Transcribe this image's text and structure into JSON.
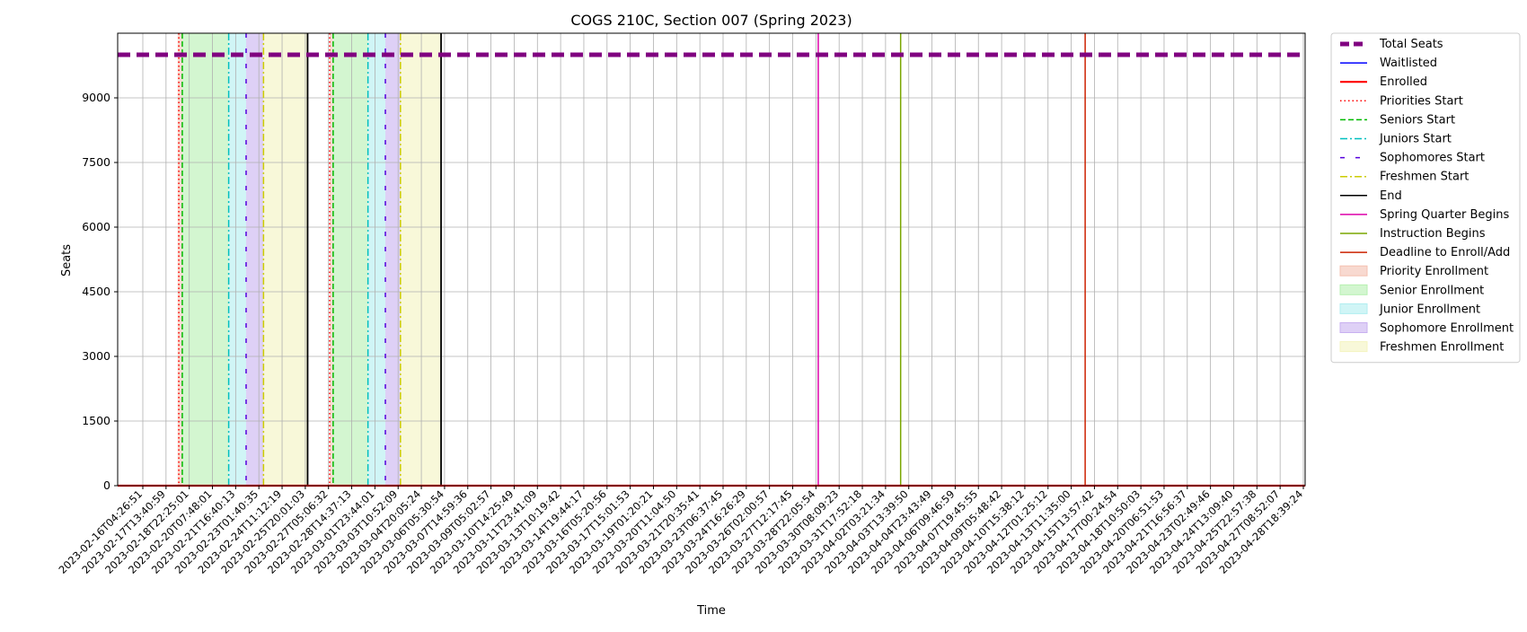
{
  "chart_data": {
    "type": "line",
    "title": "COGS 210C, Section 007 (Spring 2023)",
    "xlabel": "Time",
    "ylabel": "Seats",
    "ylim": [
      0,
      10500
    ],
    "yticks": [
      0,
      1500,
      3000,
      4500,
      6000,
      7500,
      9000
    ],
    "grid": true,
    "legend_position": "outside-right",
    "x_ticks": [
      "2023-02-16T04:26:51",
      "2023-02-17T13:40:59",
      "2023-02-18T22:25:01",
      "2023-02-20T07:48:01",
      "2023-02-21T16:40:13",
      "2023-02-23T01:40:35",
      "2023-02-24T11:12:19",
      "2023-02-25T20:01:03",
      "2023-02-27T05:06:32",
      "2023-02-28T14:37:13",
      "2023-03-01T23:44:01",
      "2023-03-03T10:52:09",
      "2023-03-04T20:05:24",
      "2023-03-06T05:30:54",
      "2023-03-07T14:59:36",
      "2023-03-09T05:02:57",
      "2023-03-10T14:25:49",
      "2023-03-11T23:41:09",
      "2023-03-13T10:19:42",
      "2023-03-14T19:44:17",
      "2023-03-16T05:20:56",
      "2023-03-17T15:01:53",
      "2023-03-19T01:20:21",
      "2023-03-20T11:04:50",
      "2023-03-21T20:35:41",
      "2023-03-23T06:37:45",
      "2023-03-24T16:26:29",
      "2023-03-26T02:00:57",
      "2023-03-27T12:17:45",
      "2023-03-28T22:05:54",
      "2023-03-30T08:09:23",
      "2023-03-31T17:52:18",
      "2023-04-02T03:21:34",
      "2023-04-03T13:39:50",
      "2023-04-04T23:43:49",
      "2023-04-06T09:46:59",
      "2023-04-07T19:45:55",
      "2023-04-09T05:48:42",
      "2023-04-10T15:38:12",
      "2023-04-12T01:25:12",
      "2023-04-13T11:35:00",
      "2023-04-15T13:57:42",
      "2023-04-17T00:24:54",
      "2023-04-18T10:50:03",
      "2023-04-20T06:51:53",
      "2023-04-21T16:56:37",
      "2023-04-23T02:49:46",
      "2023-04-24T13:09:40",
      "2023-04-25T22:57:38",
      "2023-04-27T08:52:07",
      "2023-04-28T18:39:24"
    ],
    "series": [
      {
        "name": "Total Seats",
        "color": "#800080",
        "style": "dashed-thick",
        "value": 9999
      },
      {
        "name": "Waitlisted",
        "color": "#0000ff",
        "style": "solid",
        "value": 0
      },
      {
        "name": "Enrolled",
        "color": "#ff0000",
        "style": "solid-thick",
        "value": 0
      }
    ],
    "shaded_periods": [
      {
        "name": "Priority Enrollment",
        "color": "#f4c0b0",
        "start_tick": 1.5,
        "end_tick": 1.7
      },
      {
        "name": "Senior Enrollment",
        "color": "#b6f0b0",
        "start_tick": 1.7,
        "end_tick": 3.7
      },
      {
        "name": "Junior Enrollment",
        "color": "#b0eef0",
        "start_tick": 3.7,
        "end_tick": 4.45
      },
      {
        "name": "Sophomore Enrollment",
        "color": "#c8b0f0",
        "start_tick": 4.45,
        "end_tick": 5.2
      },
      {
        "name": "Freshmen Enrollment",
        "color": "#f4f4c0",
        "start_tick": 5.2,
        "end_tick": 7.1
      },
      {
        "name": "Priority Enrollment",
        "color": "#f4c0b0",
        "start_tick": 8.05,
        "end_tick": 8.2
      },
      {
        "name": "Senior Enrollment",
        "color": "#b6f0b0",
        "start_tick": 8.2,
        "end_tick": 9.7
      },
      {
        "name": "Junior Enrollment",
        "color": "#b0eef0",
        "start_tick": 9.7,
        "end_tick": 10.45
      },
      {
        "name": "Sophomore Enrollment",
        "color": "#c8b0f0",
        "start_tick": 10.45,
        "end_tick": 11.1
      },
      {
        "name": "Freshmen Enrollment",
        "color": "#f4f4c0",
        "start_tick": 11.1,
        "end_tick": 12.85
      }
    ],
    "event_lines": [
      {
        "name": "Priorities Start",
        "color": "#ff0000",
        "style": "dotted",
        "tick": 1.55
      },
      {
        "name": "Seniors Start",
        "color": "#00bb00",
        "style": "dashed",
        "tick": 1.7
      },
      {
        "name": "Juniors Start",
        "color": "#00bfbf",
        "style": "dashdot",
        "tick": 3.7
      },
      {
        "name": "Sophomores Start",
        "color": "#5500dd",
        "style": "loosedash",
        "tick": 4.45
      },
      {
        "name": "Freshmen Start",
        "color": "#cccc00",
        "style": "dashdot",
        "tick": 5.2
      },
      {
        "name": "End",
        "color": "#000000",
        "style": "solid",
        "tick": 7.1
      },
      {
        "name": "Priorities Start",
        "color": "#ff0000",
        "style": "dotted",
        "tick": 8.05
      },
      {
        "name": "Seniors Start",
        "color": "#00bb00",
        "style": "dashed",
        "tick": 8.2
      },
      {
        "name": "Juniors Start",
        "color": "#00bfbf",
        "style": "dashdot",
        "tick": 9.7
      },
      {
        "name": "Sophomores Start",
        "color": "#5500dd",
        "style": "loosedash",
        "tick": 10.45
      },
      {
        "name": "Freshmen Start",
        "color": "#cccc00",
        "style": "dashdot",
        "tick": 11.1
      },
      {
        "name": "End",
        "color": "#000000",
        "style": "solid",
        "tick": 12.85
      },
      {
        "name": "Spring Quarter Begins",
        "color": "#dd00aa",
        "style": "solid",
        "tick": 29.1
      },
      {
        "name": "Instruction Begins",
        "color": "#7aa600",
        "style": "solid",
        "tick": 32.65
      },
      {
        "name": "Deadline to Enroll/Add",
        "color": "#cc2200",
        "style": "solid",
        "tick": 40.6
      }
    ],
    "legend": [
      {
        "label": "Total Seats",
        "kind": "line",
        "color": "#800080",
        "style": "dashed-thick"
      },
      {
        "label": "Waitlisted",
        "kind": "line",
        "color": "#0000ff",
        "style": "solid"
      },
      {
        "label": "Enrolled",
        "kind": "line",
        "color": "#ff0000",
        "style": "solid-thick"
      },
      {
        "label": "Priorities Start",
        "kind": "line",
        "color": "#ff0000",
        "style": "dotted"
      },
      {
        "label": "Seniors Start",
        "kind": "line",
        "color": "#00bb00",
        "style": "dashed"
      },
      {
        "label": "Juniors Start",
        "kind": "line",
        "color": "#00bfbf",
        "style": "dashdot"
      },
      {
        "label": "Sophomores Start",
        "kind": "line",
        "color": "#5500dd",
        "style": "loosedash"
      },
      {
        "label": "Freshmen Start",
        "kind": "line",
        "color": "#cccc00",
        "style": "dashdot"
      },
      {
        "label": "End",
        "kind": "line",
        "color": "#000000",
        "style": "solid"
      },
      {
        "label": "Spring Quarter Begins",
        "kind": "line",
        "color": "#dd00aa",
        "style": "solid"
      },
      {
        "label": "Instruction Begins",
        "kind": "line",
        "color": "#7aa600",
        "style": "solid"
      },
      {
        "label": "Deadline to Enroll/Add",
        "kind": "line",
        "color": "#cc2200",
        "style": "solid"
      },
      {
        "label": "Priority Enrollment",
        "kind": "patch",
        "color": "#f4c0b0"
      },
      {
        "label": "Senior Enrollment",
        "kind": "patch",
        "color": "#b6f0b0"
      },
      {
        "label": "Junior Enrollment",
        "kind": "patch",
        "color": "#b0eef0"
      },
      {
        "label": "Sophomore Enrollment",
        "kind": "patch",
        "color": "#c8b0f0"
      },
      {
        "label": "Freshmen Enrollment",
        "kind": "patch",
        "color": "#f4f4c0"
      }
    ]
  }
}
